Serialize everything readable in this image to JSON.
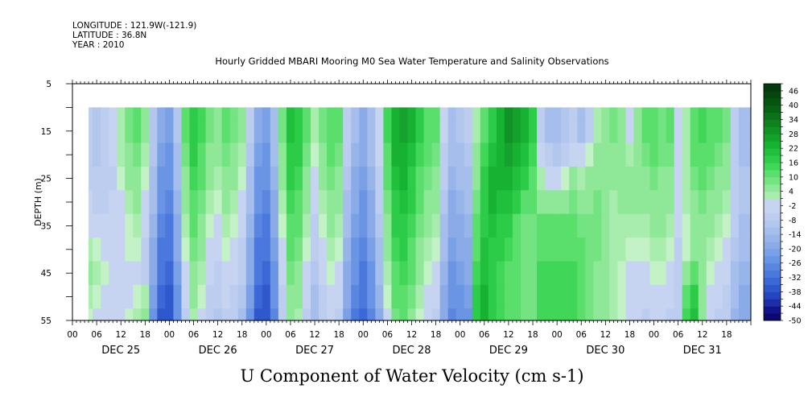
{
  "header": {
    "longitude": "LONGITUDE : 121.9W(-121.9)",
    "latitude": "LATITUDE : 36.8N",
    "year": "YEAR : 2010"
  },
  "chart_data": {
    "type": "heatmap",
    "title": "Hourly Gridded MBARI Mooring M0 Sea Water Temperature and Salinity Observations",
    "xlabel": "U Component of Water Velocity (cm s-1)",
    "ylabel": "DEPTH (m)",
    "ylim": [
      55,
      5
    ],
    "yticks": [
      5,
      15,
      25,
      35,
      45,
      55
    ],
    "data_depth_range": [
      10,
      55
    ],
    "x_hour_labels": [
      "00",
      "06",
      "12",
      "18",
      "00",
      "06",
      "12",
      "18",
      "00",
      "06",
      "12",
      "18",
      "00",
      "06",
      "12",
      "18",
      "00",
      "06",
      "12",
      "18",
      "00",
      "06",
      "12",
      "18",
      "00",
      "06",
      "12",
      "18"
    ],
    "x_day_labels": [
      "DEC 25",
      "DEC 26",
      "DEC 27",
      "DEC 28",
      "DEC 29",
      "DEC 30",
      "DEC 31"
    ],
    "x_range_hours": [
      0,
      168
    ],
    "data_start_hour": 4,
    "colorbar": {
      "labels": [
        "46",
        "40",
        "34",
        "28",
        "22",
        "16",
        "10",
        "4",
        "-2",
        "-8",
        "-14",
        "-20",
        "-26",
        "-32",
        "-38",
        "-44",
        "-50"
      ],
      "levels": [
        -50,
        -47,
        -44,
        -41,
        -38,
        -35,
        -32,
        -29,
        -26,
        -23,
        -20,
        -17,
        -14,
        -11,
        -8,
        -5,
        -2,
        1,
        4,
        7,
        10,
        13,
        16,
        19,
        22,
        25,
        28,
        31,
        34,
        37,
        40,
        43,
        46,
        49
      ],
      "negative_colors": [
        "#0a0a6e",
        "#13138a",
        "#1c2fa8",
        "#2545c0",
        "#2f58cc",
        "#3b68d6",
        "#4a78dc",
        "#5a86e0",
        "#6a94e4",
        "#7aa0e6",
        "#8aabe8",
        "#98b5ea",
        "#a6beec",
        "#b2c6ee",
        "#bccdf0",
        "#c6d4f2"
      ],
      "positive_colors": [
        "#c2f2c6",
        "#a8ecae",
        "#8ee898",
        "#74e482",
        "#5ade6c",
        "#40d658",
        "#2ccc48",
        "#20c03c",
        "#18b232",
        "#14a22c",
        "#119226",
        "#0e8220",
        "#0b721b",
        "#086216",
        "#065412",
        "#04460e",
        "#033a0b"
      ]
    },
    "depth_levels": [
      10,
      15,
      20,
      25,
      30,
      35,
      40,
      45,
      50,
      55
    ],
    "u_velocity": {
      "hours": [
        4,
        6,
        8,
        10,
        12,
        14,
        16,
        18,
        20,
        22,
        24,
        26,
        28,
        30,
        32,
        34,
        36,
        38,
        40,
        42,
        44,
        46,
        48,
        50,
        52,
        54,
        56,
        58,
        60,
        62,
        64,
        66,
        68,
        70,
        72,
        74,
        76,
        78,
        80,
        82,
        84,
        86,
        88,
        90,
        92,
        94,
        96,
        98,
        100,
        102,
        104,
        106,
        108,
        110,
        112,
        114,
        116,
        118,
        120,
        122,
        124,
        126,
        128,
        130,
        132,
        134,
        136,
        138,
        140,
        142,
        144,
        146,
        148,
        150,
        152,
        154,
        156,
        158,
        160,
        162,
        164,
        166
      ],
      "values_by_depth": [
        [
          -8,
          -10,
          -8,
          -4,
          2,
          8,
          10,
          4,
          -10,
          -20,
          -22,
          -10,
          10,
          18,
          14,
          8,
          6,
          10,
          8,
          4,
          -8,
          -20,
          -22,
          -12,
          8,
          20,
          18,
          10,
          2,
          8,
          12,
          10,
          -6,
          -14,
          -18,
          -12,
          -2,
          14,
          24,
          26,
          22,
          16,
          12,
          10,
          -4,
          -12,
          -10,
          -8,
          2,
          12,
          18,
          24,
          28,
          26,
          22,
          16,
          -6,
          -12,
          -14,
          -10,
          -8,
          -12,
          -6,
          2,
          6,
          8,
          4,
          -2,
          6,
          10,
          12,
          8,
          10,
          -4,
          2,
          10,
          14,
          12,
          10,
          8,
          -8,
          -14
        ],
        [
          -8,
          -10,
          -8,
          -4,
          2,
          8,
          10,
          4,
          -10,
          -20,
          -22,
          -10,
          10,
          18,
          14,
          8,
          6,
          10,
          8,
          4,
          -8,
          -20,
          -22,
          -12,
          8,
          20,
          18,
          10,
          2,
          8,
          12,
          10,
          -6,
          -14,
          -18,
          -12,
          -2,
          14,
          24,
          26,
          22,
          16,
          12,
          10,
          -4,
          -12,
          -10,
          -8,
          2,
          12,
          18,
          24,
          28,
          26,
          22,
          16,
          -6,
          -12,
          -14,
          -10,
          -8,
          -12,
          -6,
          2,
          6,
          8,
          4,
          -2,
          6,
          10,
          12,
          8,
          10,
          -4,
          2,
          10,
          14,
          12,
          10,
          8,
          -8,
          -14
        ],
        [
          -8,
          -10,
          -8,
          -4,
          2,
          6,
          8,
          2,
          -10,
          -22,
          -24,
          -12,
          8,
          16,
          12,
          6,
          4,
          8,
          6,
          2,
          -10,
          -22,
          -24,
          -14,
          6,
          18,
          16,
          8,
          0,
          6,
          10,
          8,
          -8,
          -16,
          -20,
          -14,
          -4,
          12,
          22,
          24,
          20,
          14,
          10,
          8,
          -6,
          -14,
          -12,
          -10,
          4,
          14,
          20,
          24,
          26,
          24,
          20,
          14,
          -2,
          -8,
          -10,
          -6,
          -2,
          -4,
          0,
          4,
          6,
          6,
          4,
          2,
          6,
          8,
          10,
          8,
          8,
          -4,
          2,
          10,
          12,
          10,
          8,
          6,
          -8,
          -12
        ],
        [
          -6,
          -8,
          -8,
          -6,
          0,
          4,
          6,
          0,
          -12,
          -24,
          -26,
          -14,
          6,
          14,
          10,
          4,
          2,
          6,
          4,
          0,
          -12,
          -24,
          -26,
          -16,
          4,
          16,
          14,
          6,
          -2,
          4,
          8,
          6,
          -10,
          -18,
          -22,
          -16,
          -6,
          10,
          20,
          22,
          18,
          12,
          8,
          6,
          -8,
          -16,
          -14,
          -12,
          6,
          16,
          22,
          22,
          24,
          20,
          16,
          12,
          2,
          -2,
          -2,
          0,
          4,
          2,
          4,
          6,
          6,
          4,
          4,
          4,
          6,
          6,
          8,
          6,
          6,
          -2,
          2,
          8,
          10,
          8,
          6,
          4,
          -6,
          -10
        ],
        [
          -4,
          -6,
          -6,
          -4,
          -2,
          2,
          4,
          -2,
          -14,
          -26,
          -28,
          -16,
          4,
          12,
          8,
          2,
          0,
          4,
          2,
          -2,
          -14,
          -26,
          -28,
          -18,
          2,
          14,
          12,
          4,
          -4,
          2,
          6,
          4,
          -12,
          -20,
          -24,
          -18,
          -8,
          8,
          18,
          20,
          16,
          10,
          6,
          4,
          -10,
          -18,
          -16,
          -14,
          8,
          18,
          22,
          20,
          20,
          16,
          12,
          10,
          6,
          4,
          4,
          6,
          8,
          6,
          6,
          8,
          6,
          2,
          4,
          4,
          4,
          4,
          6,
          4,
          4,
          -2,
          2,
          6,
          8,
          6,
          4,
          2,
          -6,
          -10
        ],
        [
          -2,
          -4,
          -4,
          -2,
          -2,
          0,
          2,
          -4,
          -16,
          -28,
          -30,
          -18,
          2,
          10,
          6,
          0,
          -2,
          2,
          0,
          -4,
          -16,
          -28,
          -30,
          -20,
          0,
          12,
          10,
          2,
          -6,
          0,
          4,
          2,
          -14,
          -22,
          -26,
          -20,
          -10,
          6,
          16,
          18,
          14,
          8,
          4,
          2,
          -12,
          -20,
          -18,
          -16,
          10,
          18,
          20,
          18,
          16,
          12,
          8,
          8,
          10,
          10,
          10,
          10,
          10,
          8,
          8,
          8,
          6,
          2,
          2,
          2,
          2,
          2,
          4,
          4,
          2,
          -4,
          0,
          4,
          6,
          4,
          2,
          0,
          -8,
          -12
        ],
        [
          2,
          0,
          -2,
          -2,
          -2,
          0,
          0,
          -6,
          -18,
          -30,
          -32,
          -20,
          0,
          8,
          4,
          -2,
          -4,
          0,
          -2,
          -6,
          -18,
          -30,
          -32,
          -22,
          -2,
          10,
          8,
          0,
          -8,
          -2,
          2,
          0,
          -16,
          -24,
          -28,
          -22,
          -12,
          4,
          14,
          16,
          12,
          6,
          2,
          0,
          -14,
          -22,
          -20,
          -18,
          12,
          20,
          18,
          16,
          14,
          10,
          8,
          8,
          12,
          12,
          12,
          12,
          12,
          10,
          8,
          8,
          6,
          2,
          2,
          0,
          0,
          0,
          2,
          2,
          0,
          -6,
          0,
          4,
          4,
          2,
          0,
          -2,
          -10,
          -14
        ],
        [
          4,
          2,
          0,
          -2,
          -2,
          -2,
          -2,
          -8,
          -20,
          -32,
          -34,
          -22,
          -2,
          6,
          2,
          -4,
          -6,
          -2,
          -4,
          -8,
          -20,
          -32,
          -34,
          -24,
          -4,
          8,
          6,
          -2,
          -10,
          -4,
          0,
          -2,
          -18,
          -26,
          -30,
          -24,
          -14,
          2,
          12,
          14,
          10,
          4,
          0,
          -2,
          -16,
          -24,
          -22,
          -20,
          14,
          20,
          18,
          14,
          12,
          10,
          8,
          8,
          14,
          14,
          14,
          14,
          14,
          10,
          8,
          6,
          4,
          2,
          0,
          -2,
          -2,
          -2,
          0,
          0,
          -2,
          -6,
          4,
          10,
          4,
          0,
          -2,
          -4,
          -12,
          -16
        ],
        [
          2,
          0,
          -2,
          -2,
          -2,
          -2,
          0,
          2,
          -22,
          -34,
          -36,
          -24,
          -4,
          4,
          0,
          -6,
          -8,
          -4,
          -6,
          -10,
          -22,
          -34,
          -36,
          -26,
          -6,
          6,
          4,
          -4,
          -12,
          -6,
          -2,
          -4,
          -20,
          -28,
          -32,
          -26,
          -16,
          0,
          10,
          12,
          8,
          2,
          -2,
          -4,
          -18,
          -26,
          -24,
          -22,
          16,
          22,
          18,
          14,
          12,
          10,
          8,
          8,
          14,
          14,
          14,
          14,
          14,
          10,
          8,
          6,
          4,
          2,
          0,
          -2,
          -4,
          -4,
          -2,
          -2,
          -4,
          -6,
          12,
          18,
          4,
          -2,
          -4,
          -6,
          -14,
          -18
        ],
        [
          0,
          -2,
          -4,
          -2,
          -2,
          0,
          2,
          4,
          -24,
          -36,
          -38,
          -26,
          -6,
          2,
          -2,
          -8,
          -10,
          -6,
          -8,
          -12,
          -24,
          -36,
          -38,
          -28,
          -8,
          4,
          2,
          -6,
          -14,
          -8,
          -4,
          -6,
          -22,
          -30,
          -34,
          -28,
          -18,
          -2,
          8,
          10,
          6,
          0,
          -4,
          -6,
          -20,
          -28,
          -26,
          -24,
          18,
          24,
          18,
          14,
          12,
          10,
          8,
          8,
          14,
          14,
          14,
          14,
          14,
          10,
          8,
          6,
          4,
          2,
          0,
          -2,
          -4,
          -6,
          -4,
          -4,
          -6,
          -8,
          14,
          20,
          4,
          -4,
          -6,
          -8,
          -16,
          -20
        ]
      ]
    }
  }
}
